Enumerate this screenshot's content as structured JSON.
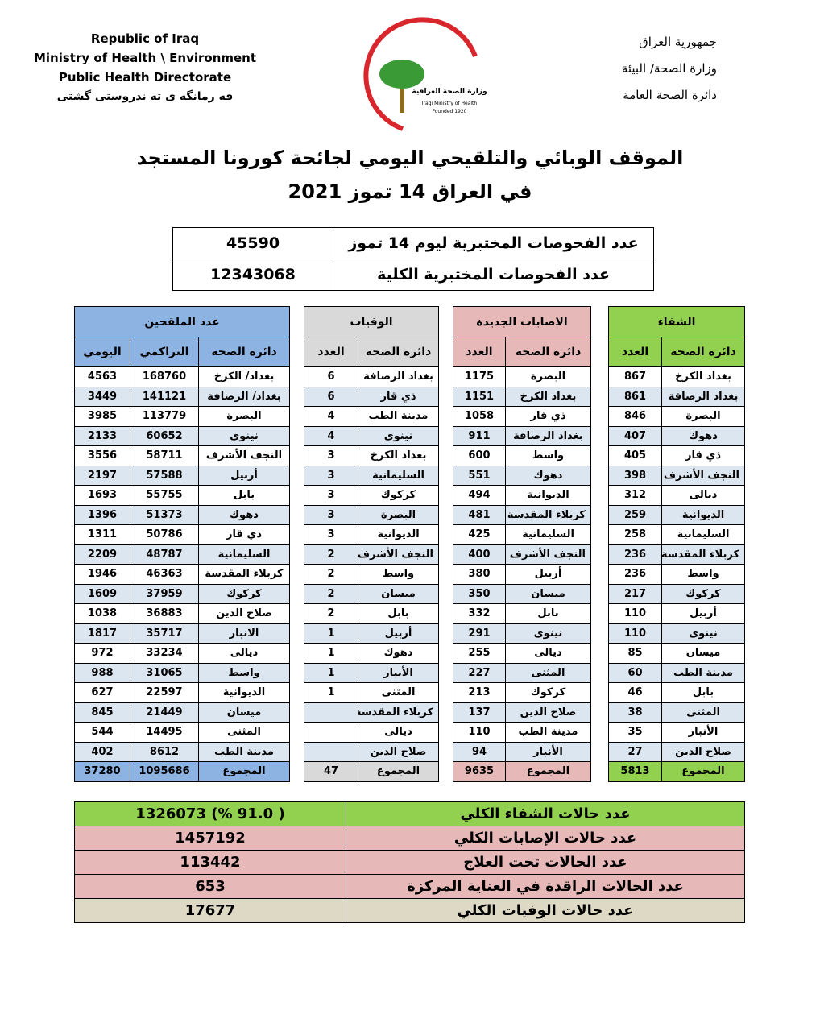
{
  "header": {
    "left": [
      "Republic of Iraq",
      "Ministry of Health \\ Environment",
      "Public Health Directorate",
      "فه رمانگه ی ته ندروستی گشتی"
    ],
    "right": [
      "جمهورية العراق",
      "وزارة الصحة/ البيئة",
      "دائرة الصحة العامة"
    ],
    "logo": [
      "وزارة الصحة العراقية",
      "Iraqi Ministry of Health",
      "Founded 1920"
    ]
  },
  "title": [
    "الموقف الوبائي والتلقيحي اليومي لجائحة كورونا المستجد",
    "في العراق 14  تموز 2021"
  ],
  "tests": {
    "rows": [
      [
        "عدد الفحوصات المختبرية  ليوم 14 تموز",
        45590
      ],
      [
        "عدد الفحوصات المختبرية الكلية",
        12343068
      ]
    ]
  },
  "recovery": {
    "title": "الشفاء",
    "headers": [
      "دائرة الصحة",
      "العدد"
    ],
    "rows": [
      [
        "بغداد الكرخ",
        867
      ],
      [
        "بغداد الرصافة",
        861
      ],
      [
        "البصرة",
        846
      ],
      [
        "دهوك",
        407
      ],
      [
        "ذي قار",
        405
      ],
      [
        "النجف الأشرف",
        398
      ],
      [
        "ديالى",
        312
      ],
      [
        "الديوانية",
        259
      ],
      [
        "السليمانية",
        258
      ],
      [
        "كربلاء المقدسة",
        236
      ],
      [
        "واسط",
        236
      ],
      [
        "كركوك",
        217
      ],
      [
        "أربيل",
        110
      ],
      [
        "نينوى",
        110
      ],
      [
        "ميسان",
        85
      ],
      [
        "مدينة الطب",
        60
      ],
      [
        "بابل",
        46
      ],
      [
        "المثنى",
        38
      ],
      [
        "الأنبار",
        35
      ],
      [
        "صلاح الدين",
        27
      ]
    ],
    "total": [
      "المجموع",
      5813
    ]
  },
  "cases": {
    "title": "الاصابات الجديدة",
    "headers": [
      "دائرة الصحة",
      "العدد"
    ],
    "rows": [
      [
        "البصرة",
        1175
      ],
      [
        "بغداد الكرخ",
        1151
      ],
      [
        "ذي قار",
        1058
      ],
      [
        "بغداد الرصافة",
        911
      ],
      [
        "واسط",
        600
      ],
      [
        "دهوك",
        551
      ],
      [
        "الديوانية",
        494
      ],
      [
        "كربلاء المقدسة",
        481
      ],
      [
        "السليمانية",
        425
      ],
      [
        "النجف الأشرف",
        400
      ],
      [
        "أربيل",
        380
      ],
      [
        "ميسان",
        350
      ],
      [
        "بابل",
        332
      ],
      [
        "نينوى",
        291
      ],
      [
        "ديالى",
        255
      ],
      [
        "المثنى",
        227
      ],
      [
        "كركوك",
        213
      ],
      [
        "صلاح الدين",
        137
      ],
      [
        "مدينة الطب",
        110
      ],
      [
        "الأنبار",
        94
      ]
    ],
    "total": [
      "المجموع",
      9635
    ]
  },
  "deaths": {
    "title": "الوفيات",
    "headers": [
      "دائرة الصحة",
      "العدد"
    ],
    "rows": [
      [
        "بغداد الرصافة",
        6
      ],
      [
        "ذي قار",
        6
      ],
      [
        "مدينة الطب",
        4
      ],
      [
        "نينوى",
        4
      ],
      [
        "بغداد الكرخ",
        3
      ],
      [
        "السليمانية",
        3
      ],
      [
        "كركوك",
        3
      ],
      [
        "البصرة",
        3
      ],
      [
        "الديوانية",
        3
      ],
      [
        "النجف الأشرف",
        2
      ],
      [
        "واسط",
        2
      ],
      [
        "ميسان",
        2
      ],
      [
        "بابل",
        2
      ],
      [
        "أربيل",
        1
      ],
      [
        "دهوك",
        1
      ],
      [
        "الأنبار",
        1
      ],
      [
        "المثنى",
        1
      ],
      [
        "كربلاء المقدسة",
        null
      ],
      [
        "ديالى",
        null
      ],
      [
        "صلاح الدين",
        null
      ]
    ],
    "total": [
      "المجموع",
      47
    ]
  },
  "vaccinated": {
    "title": "عدد الملقحين",
    "headers": [
      "دائرة الصحة",
      "التراكمي",
      "اليومي"
    ],
    "rows": [
      [
        "بغداد/ الكرخ",
        168760,
        4563
      ],
      [
        "بغداد/ الرصافة",
        141121,
        3449
      ],
      [
        "البصرة",
        113779,
        3985
      ],
      [
        "نينوى",
        60652,
        2133
      ],
      [
        "النجف الأشرف",
        58711,
        3556
      ],
      [
        "أربيل",
        57588,
        2197
      ],
      [
        "بابل",
        55755,
        1693
      ],
      [
        "دهوك",
        51373,
        1396
      ],
      [
        "ذي قار",
        50786,
        1311
      ],
      [
        "السليمانية",
        48787,
        2209
      ],
      [
        "كربلاء المقدسة",
        46363,
        1946
      ],
      [
        "كركوك",
        37959,
        1609
      ],
      [
        "صلاح الدين",
        36883,
        1038
      ],
      [
        "الانبار",
        35717,
        1817
      ],
      [
        "ديالى",
        33234,
        972
      ],
      [
        "واسط",
        31065,
        988
      ],
      [
        "الديوانية",
        22597,
        627
      ],
      [
        "ميسان",
        21449,
        845
      ],
      [
        "المثنى",
        14495,
        544
      ],
      [
        "مدينة الطب",
        8612,
        402
      ]
    ],
    "total": [
      "المجموع",
      1095686,
      37280
    ]
  },
  "summary": {
    "rows": [
      [
        "عدد حالات الشفاء الكلي",
        "( 91.0 %)  1326073"
      ],
      [
        "عدد حالات الإصابات الكلي",
        1457192
      ],
      [
        "عدد الحالات تحت العلاج",
        113442
      ],
      [
        "عدد الحالات الراقدة في العناية المركزة",
        653
      ],
      [
        "عدد حالات الوفيات الكلي",
        17677
      ]
    ]
  }
}
